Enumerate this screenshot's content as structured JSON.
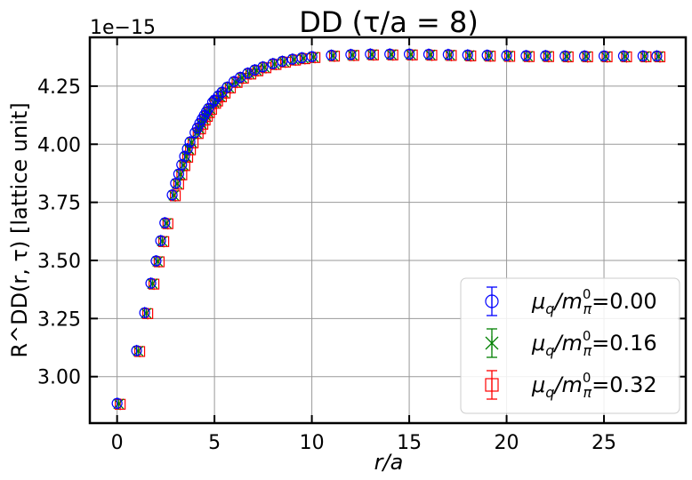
{
  "chart_data": {
    "type": "scatter",
    "title": "DD (τ/a = 8)",
    "xlabel": "r/a",
    "ylabel": "R^DD(r, τ) [lattice unit]",
    "y_offset_label": "1e−15",
    "xlim": [
      -1.4,
      29.2
    ],
    "ylim": [
      2.8,
      4.46
    ],
    "xticks": [
      0,
      5,
      10,
      15,
      20,
      25
    ],
    "yticks": [
      3.0,
      3.25,
      3.5,
      3.75,
      4.0,
      4.25
    ],
    "xtick_labels": [
      "0",
      "5",
      "10",
      "15",
      "20",
      "25"
    ],
    "ytick_labels": [
      "3.00",
      "3.25",
      "3.50",
      "3.75",
      "4.00",
      "4.25"
    ],
    "grid": true,
    "legend_position": "lower-right",
    "series": [
      {
        "name": "μq/mπ0=0.00",
        "label": {
          "base": "μ",
          "sub1": "q",
          "mid": "/m",
          "sup": "0",
          "sub2": "π",
          "value": "=0.00"
        },
        "color": "#0000ff",
        "marker": "circle",
        "dx": 0.0,
        "dy": 0.0
      },
      {
        "name": "μq/mπ0=0.16",
        "label": {
          "base": "μ",
          "sub1": "q",
          "mid": "/m",
          "sup": "0",
          "sub2": "π",
          "value": "=0.16"
        },
        "color": "#008000",
        "marker": "x",
        "dx": 0.08,
        "dy": -0.002
      },
      {
        "name": "μq/mπ0=0.32",
        "label": {
          "base": "μ",
          "sub1": "q",
          "mid": "/m",
          "sup": "0",
          "sub2": "π",
          "value": "=0.32"
        },
        "color": "#ff0000",
        "marker": "square",
        "dx": 0.16,
        "dy": -0.004
      }
    ],
    "points": [
      [
        0.0,
        2.885
      ],
      [
        1.0,
        3.112
      ],
      [
        1.414,
        3.275
      ],
      [
        1.732,
        3.402
      ],
      [
        2.0,
        3.498
      ],
      [
        2.236,
        3.585
      ],
      [
        2.449,
        3.662
      ],
      [
        2.828,
        3.782
      ],
      [
        3.0,
        3.832
      ],
      [
        3.162,
        3.872
      ],
      [
        3.317,
        3.912
      ],
      [
        3.464,
        3.948
      ],
      [
        3.606,
        3.98
      ],
      [
        3.742,
        4.01
      ],
      [
        4.0,
        4.05
      ],
      [
        4.123,
        4.07
      ],
      [
        4.243,
        4.09
      ],
      [
        4.359,
        4.108
      ],
      [
        4.472,
        4.124
      ],
      [
        4.583,
        4.14
      ],
      [
        4.69,
        4.154
      ],
      [
        4.899,
        4.18
      ],
      [
        5.0,
        4.19
      ],
      [
        5.196,
        4.208
      ],
      [
        5.385,
        4.224
      ],
      [
        5.657,
        4.246
      ],
      [
        6.0,
        4.27
      ],
      [
        6.325,
        4.288
      ],
      [
        6.708,
        4.306
      ],
      [
        7.071,
        4.32
      ],
      [
        7.483,
        4.333
      ],
      [
        8.0,
        4.347
      ],
      [
        8.485,
        4.357
      ],
      [
        9.0,
        4.366
      ],
      [
        9.487,
        4.372
      ],
      [
        10.0,
        4.377
      ],
      [
        11.0,
        4.383
      ],
      [
        12.0,
        4.386
      ],
      [
        13.0,
        4.388
      ],
      [
        14.0,
        4.388
      ],
      [
        15.0,
        4.388
      ],
      [
        16.0,
        4.387
      ],
      [
        17.0,
        4.386
      ],
      [
        18.0,
        4.384
      ],
      [
        19.0,
        4.383
      ],
      [
        20.0,
        4.382
      ],
      [
        21.0,
        4.381
      ],
      [
        22.0,
        4.381
      ],
      [
        23.0,
        4.38
      ],
      [
        24.0,
        4.38
      ],
      [
        25.0,
        4.38
      ],
      [
        26.0,
        4.38
      ],
      [
        27.0,
        4.38
      ],
      [
        27.713,
        4.38
      ]
    ]
  }
}
